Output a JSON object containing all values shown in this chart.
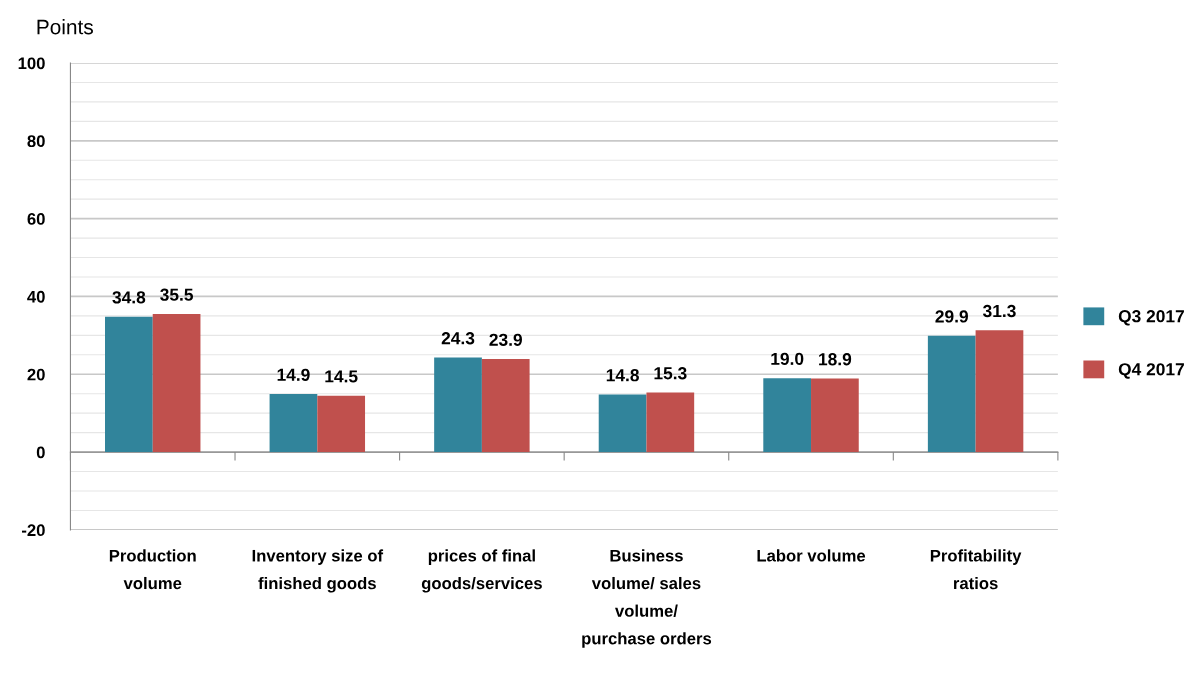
{
  "chart_data": {
    "type": "bar",
    "ylabel": "Points",
    "categories": [
      "Production\nvolume",
      "Inventory size of\nfinished goods",
      "prices of final\ngoods/services",
      "Business\nvolume/ sales\nvolume/\npurchase orders",
      "Labor volume",
      "Profitability\nratios"
    ],
    "series": [
      {
        "name": "Q3 2017",
        "color": "#31849b",
        "values": [
          34.8,
          14.9,
          24.3,
          14.8,
          19.0,
          29.9
        ],
        "value_labels": [
          "34.8",
          "14.9",
          "24.3",
          "14.8",
          "19.0",
          "29.9"
        ]
      },
      {
        "name": "Q4 2017",
        "color": "#c0504d",
        "values": [
          35.5,
          14.5,
          23.9,
          15.3,
          18.9,
          31.3
        ],
        "value_labels": [
          "35.5",
          "14.5",
          "23.9",
          "15.3",
          "18.9",
          "31.3"
        ]
      }
    ],
    "ylim": [
      -20,
      100
    ],
    "yticks": [
      -20,
      {
        "value": -15,
        "label": null
      },
      {
        "value": -10,
        "label": null
      },
      {
        "value": -5,
        "label": null
      },
      0,
      {
        "value": 5,
        "label": null
      },
      {
        "value": 10,
        "label": null
      },
      {
        "value": 15,
        "label": null
      },
      20,
      {
        "value": 25,
        "label": null
      },
      {
        "value": 30,
        "label": null
      },
      {
        "value": 35,
        "label": null
      },
      40,
      {
        "value": 45,
        "label": null
      },
      {
        "value": 50,
        "label": null
      },
      {
        "value": 55,
        "label": null
      },
      60,
      {
        "value": 65,
        "label": null
      },
      {
        "value": 70,
        "label": null
      },
      {
        "value": 75,
        "label": null
      },
      80,
      {
        "value": 85,
        "label": null
      },
      {
        "value": 90,
        "label": null
      },
      {
        "value": 95,
        "label": null
      },
      100
    ],
    "grid": "y",
    "legend": "right"
  }
}
